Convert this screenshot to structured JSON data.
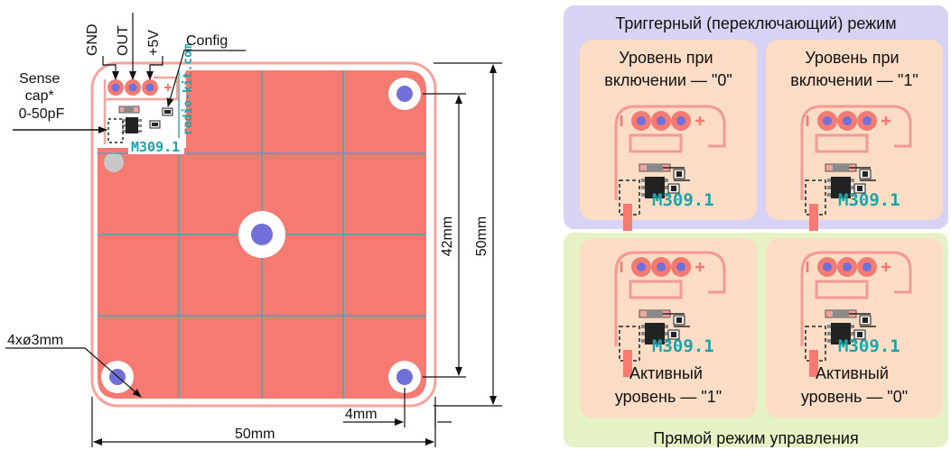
{
  "board": {
    "pins": [
      "GND",
      "OUT",
      "+5V"
    ],
    "config_label": "Config",
    "sense_cap_lines": [
      "Sense",
      "cap*",
      "0-50pF"
    ],
    "site_text": "radio-kit.com",
    "chip_label": "M309.1",
    "dims": {
      "width": "50mm",
      "height_outer": "50mm",
      "height_inner": "42mm",
      "hole_offset": "4mm",
      "holes": "4xø3mm"
    }
  },
  "modes": {
    "trigger": {
      "title": "Триггерный (переключающий) режим",
      "cards": [
        {
          "lines": [
            "Уровень при",
            "включении — \"0\""
          ],
          "chip": "M309.1"
        },
        {
          "lines": [
            "Уровень при",
            "включении — \"1\""
          ],
          "chip": "M309.1"
        }
      ]
    },
    "direct": {
      "title": "Прямой режим управления",
      "cards": [
        {
          "lines": [
            "Активный",
            "уровень — \"1\""
          ],
          "chip": "M309.1"
        },
        {
          "lines": [
            "Активный",
            "уровень — \"0\""
          ],
          "chip": "M309.1"
        }
      ]
    }
  },
  "colors": {
    "board": "#f47a72",
    "trace": "#f7a39d",
    "pad": "#7070d8",
    "grid": "#3ab0b5",
    "teal_text": "#1fa3a8",
    "trigger_bg": "#d8d3f4",
    "direct_bg": "#e5f2c6",
    "card_bg": "#fbdcc4"
  }
}
